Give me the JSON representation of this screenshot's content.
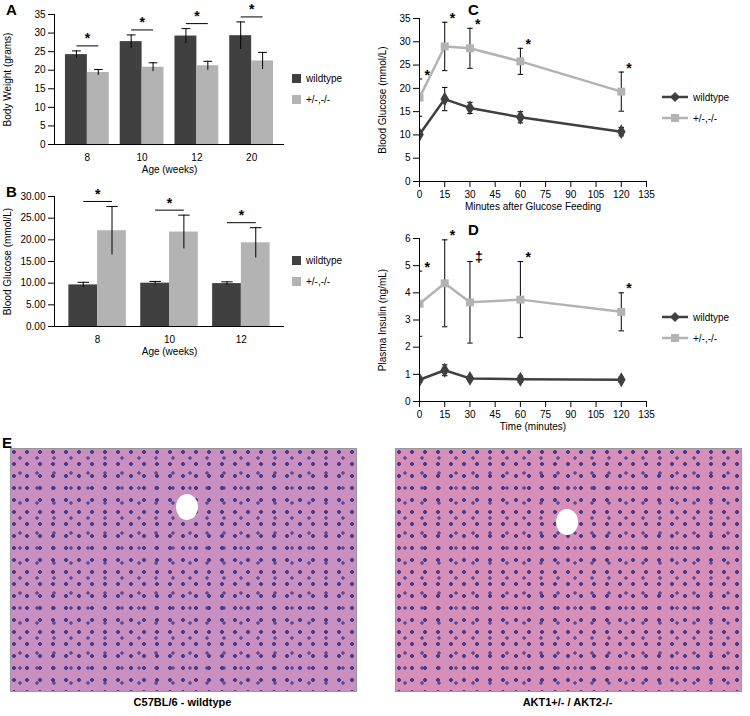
{
  "chart_data": [
    {
      "panel_label": "A",
      "type": "bar",
      "x_label": "Age (weeks)",
      "y_label": "Body Weight (grams)",
      "categories": [
        "8",
        "10",
        "12",
        "20"
      ],
      "series": [
        {
          "name": "wildtype",
          "color": "#404040",
          "values": [
            24.2,
            27.7,
            29.2,
            29.3
          ],
          "errors": [
            1.0,
            1.8,
            2.0,
            3.7
          ]
        },
        {
          "name": "+/-,-/-",
          "color": "#b3b3b3",
          "values": [
            19.4,
            20.8,
            21.2,
            22.5
          ],
          "errors": [
            0.8,
            1.2,
            1.2,
            2.3
          ]
        }
      ],
      "significance": [
        "*",
        "*",
        "*",
        "*"
      ],
      "ylim": [
        0,
        35
      ],
      "yticks": [
        0,
        5,
        10,
        15,
        20,
        25,
        30,
        35
      ],
      "legend": "right"
    },
    {
      "panel_label": "B",
      "type": "bar",
      "x_label": "Age (weeks)",
      "y_label": "Blood Glucose (mmol/L)",
      "categories": [
        "8",
        "10",
        "12"
      ],
      "series": [
        {
          "name": "wildtype",
          "color": "#404040",
          "values": [
            9.6,
            10.0,
            9.9
          ],
          "errors": [
            0.6,
            0.4,
            0.4
          ]
        },
        {
          "name": "+/-,-/-",
          "color": "#b3b3b3",
          "values": [
            22.1,
            21.8,
            19.3
          ],
          "errors": [
            5.6,
            3.9,
            3.5
          ]
        }
      ],
      "significance": [
        "*",
        "*",
        "*"
      ],
      "ylim": [
        0,
        30
      ],
      "yticks": [
        {
          "value": 0,
          "label": "0.00"
        },
        {
          "value": 5,
          "label": "5.00"
        },
        {
          "value": 10,
          "label": "10.00"
        },
        {
          "value": 15,
          "label": "15.00"
        },
        {
          "value": 20,
          "label": "20.00"
        },
        {
          "value": 25,
          "label": "25.00"
        },
        {
          "value": 30,
          "label": "30.00"
        }
      ],
      "legend": "right"
    },
    {
      "panel_label": "C",
      "type": "line",
      "x_label": "Minutes after Glucose Feeding",
      "y_label": "Blood Glucose (mmol/L)",
      "x": [
        0,
        15,
        30,
        60,
        120
      ],
      "series": [
        {
          "name": "wildtype",
          "color": "#404040",
          "marker": "diamond",
          "values": [
            10.1,
            17.7,
            15.8,
            13.8,
            10.7
          ],
          "errors": [
            0.4,
            2.5,
            1.2,
            1.2,
            0.9
          ]
        },
        {
          "name": "+/-,-/-",
          "color": "#b3b3b3",
          "marker": "square",
          "values": [
            18.0,
            29.0,
            28.6,
            25.8,
            19.3
          ],
          "errors": [
            4.0,
            5.2,
            4.3,
            2.8,
            4.2
          ],
          "significance": [
            "*",
            "*",
            "*",
            "*",
            "*"
          ]
        }
      ],
      "xlim": [
        0,
        135
      ],
      "xticks": [
        0,
        15,
        30,
        45,
        60,
        75,
        90,
        105,
        120,
        135
      ],
      "ylim": [
        0,
        35
      ],
      "yticks": [
        0,
        5,
        10,
        15,
        20,
        25,
        30,
        35
      ],
      "legend": "right"
    },
    {
      "panel_label": "D",
      "type": "line",
      "x_label": "Time (minutes)",
      "y_label": "Plasma Insulin (ng/mL)",
      "x": [
        0,
        15,
        30,
        60,
        120
      ],
      "series": [
        {
          "name": "wildtype",
          "color": "#404040",
          "marker": "diamond",
          "values": [
            0.8,
            1.15,
            0.85,
            0.82,
            0.8
          ],
          "errors": [
            0.1,
            0.2,
            0.08,
            0.12,
            0.1
          ]
        },
        {
          "name": "+/-,-/-",
          "color": "#b3b3b3",
          "marker": "square",
          "values": [
            3.6,
            4.35,
            3.65,
            3.75,
            3.3
          ],
          "errors": [
            1.2,
            1.6,
            1.5,
            1.4,
            0.7
          ],
          "significance": [
            "*",
            "*",
            "‡",
            "*",
            "*"
          ]
        }
      ],
      "xlim": [
        0,
        135
      ],
      "xticks": [
        0,
        15,
        30,
        45,
        60,
        75,
        90,
        105,
        120,
        135
      ],
      "ylim": [
        0,
        6
      ],
      "yticks": [
        0,
        1,
        2,
        3,
        4,
        5,
        6
      ],
      "legend": "right"
    }
  ],
  "images": {
    "panel_label": "E",
    "captions": [
      "C57BL/6 - wildtype",
      "AKT1+/- / AKT2-/-"
    ]
  }
}
